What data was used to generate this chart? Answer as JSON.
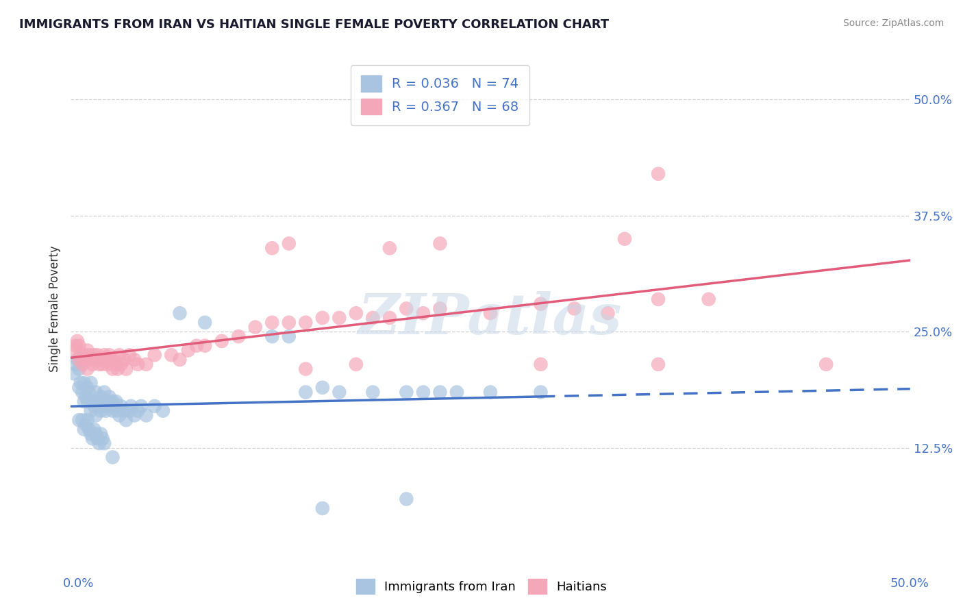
{
  "title": "IMMIGRANTS FROM IRAN VS HAITIAN SINGLE FEMALE POVERTY CORRELATION CHART",
  "source": "Source: ZipAtlas.com",
  "ylabel": "Single Female Poverty",
  "xlim": [
    0.0,
    0.5
  ],
  "ylim": [
    0.0,
    0.55
  ],
  "xtick_labels_edge": [
    "0.0%",
    "50.0%"
  ],
  "xtick_vals_edge": [
    0.0,
    0.5
  ],
  "ytick_labels": [
    "12.5%",
    "25.0%",
    "37.5%",
    "50.0%"
  ],
  "ytick_vals": [
    0.125,
    0.25,
    0.375,
    0.5
  ],
  "ytick_grid_vals": [
    0.125,
    0.25,
    0.375,
    0.5
  ],
  "iran_color": "#a8c4e0",
  "haitian_color": "#f4a7b9",
  "iran_line_color": "#4472c4",
  "haitian_line_color": "#e05c7a",
  "watermark": "ZIPatlas",
  "iran_scatter": [
    [
      0.002,
      0.205
    ],
    [
      0.003,
      0.215
    ],
    [
      0.004,
      0.22
    ],
    [
      0.005,
      0.21
    ],
    [
      0.005,
      0.19
    ],
    [
      0.006,
      0.195
    ],
    [
      0.007,
      0.185
    ],
    [
      0.008,
      0.195
    ],
    [
      0.008,
      0.175
    ],
    [
      0.009,
      0.18
    ],
    [
      0.01,
      0.19
    ],
    [
      0.01,
      0.175
    ],
    [
      0.011,
      0.185
    ],
    [
      0.012,
      0.195
    ],
    [
      0.012,
      0.165
    ],
    [
      0.013,
      0.175
    ],
    [
      0.014,
      0.17
    ],
    [
      0.015,
      0.185
    ],
    [
      0.015,
      0.16
    ],
    [
      0.016,
      0.175
    ],
    [
      0.017,
      0.17
    ],
    [
      0.018,
      0.18
    ],
    [
      0.018,
      0.165
    ],
    [
      0.019,
      0.175
    ],
    [
      0.02,
      0.185
    ],
    [
      0.02,
      0.17
    ],
    [
      0.021,
      0.165
    ],
    [
      0.022,
      0.175
    ],
    [
      0.023,
      0.18
    ],
    [
      0.024,
      0.17
    ],
    [
      0.025,
      0.175
    ],
    [
      0.025,
      0.165
    ],
    [
      0.026,
      0.17
    ],
    [
      0.027,
      0.175
    ],
    [
      0.028,
      0.165
    ],
    [
      0.029,
      0.16
    ],
    [
      0.03,
      0.17
    ],
    [
      0.032,
      0.165
    ],
    [
      0.033,
      0.155
    ],
    [
      0.035,
      0.165
    ],
    [
      0.036,
      0.17
    ],
    [
      0.038,
      0.16
    ],
    [
      0.04,
      0.165
    ],
    [
      0.042,
      0.17
    ],
    [
      0.045,
      0.16
    ],
    [
      0.05,
      0.17
    ],
    [
      0.055,
      0.165
    ],
    [
      0.065,
      0.27
    ],
    [
      0.08,
      0.26
    ],
    [
      0.12,
      0.245
    ],
    [
      0.13,
      0.245
    ],
    [
      0.14,
      0.185
    ],
    [
      0.15,
      0.19
    ],
    [
      0.16,
      0.185
    ],
    [
      0.18,
      0.185
    ],
    [
      0.2,
      0.185
    ],
    [
      0.21,
      0.185
    ],
    [
      0.22,
      0.185
    ],
    [
      0.23,
      0.185
    ],
    [
      0.25,
      0.185
    ],
    [
      0.28,
      0.185
    ],
    [
      0.005,
      0.155
    ],
    [
      0.007,
      0.155
    ],
    [
      0.008,
      0.145
    ],
    [
      0.009,
      0.15
    ],
    [
      0.01,
      0.155
    ],
    [
      0.011,
      0.145
    ],
    [
      0.012,
      0.14
    ],
    [
      0.013,
      0.135
    ],
    [
      0.014,
      0.145
    ],
    [
      0.015,
      0.14
    ],
    [
      0.016,
      0.135
    ],
    [
      0.017,
      0.13
    ],
    [
      0.018,
      0.14
    ],
    [
      0.019,
      0.135
    ],
    [
      0.02,
      0.13
    ],
    [
      0.025,
      0.115
    ],
    [
      0.15,
      0.06
    ],
    [
      0.2,
      0.07
    ]
  ],
  "haitian_scatter": [
    [
      0.002,
      0.23
    ],
    [
      0.003,
      0.235
    ],
    [
      0.004,
      0.24
    ],
    [
      0.005,
      0.235
    ],
    [
      0.005,
      0.22
    ],
    [
      0.006,
      0.225
    ],
    [
      0.007,
      0.215
    ],
    [
      0.008,
      0.225
    ],
    [
      0.009,
      0.22
    ],
    [
      0.01,
      0.23
    ],
    [
      0.01,
      0.21
    ],
    [
      0.011,
      0.225
    ],
    [
      0.012,
      0.22
    ],
    [
      0.013,
      0.215
    ],
    [
      0.014,
      0.225
    ],
    [
      0.015,
      0.22
    ],
    [
      0.016,
      0.225
    ],
    [
      0.017,
      0.215
    ],
    [
      0.018,
      0.22
    ],
    [
      0.019,
      0.215
    ],
    [
      0.02,
      0.225
    ],
    [
      0.021,
      0.22
    ],
    [
      0.022,
      0.215
    ],
    [
      0.023,
      0.225
    ],
    [
      0.024,
      0.22
    ],
    [
      0.025,
      0.21
    ],
    [
      0.026,
      0.22
    ],
    [
      0.027,
      0.215
    ],
    [
      0.028,
      0.21
    ],
    [
      0.029,
      0.225
    ],
    [
      0.03,
      0.215
    ],
    [
      0.032,
      0.22
    ],
    [
      0.033,
      0.21
    ],
    [
      0.035,
      0.225
    ],
    [
      0.038,
      0.22
    ],
    [
      0.04,
      0.215
    ],
    [
      0.045,
      0.215
    ],
    [
      0.05,
      0.225
    ],
    [
      0.06,
      0.225
    ],
    [
      0.065,
      0.22
    ],
    [
      0.07,
      0.23
    ],
    [
      0.075,
      0.235
    ],
    [
      0.08,
      0.235
    ],
    [
      0.09,
      0.24
    ],
    [
      0.1,
      0.245
    ],
    [
      0.11,
      0.255
    ],
    [
      0.12,
      0.26
    ],
    [
      0.13,
      0.26
    ],
    [
      0.14,
      0.26
    ],
    [
      0.15,
      0.265
    ],
    [
      0.16,
      0.265
    ],
    [
      0.17,
      0.27
    ],
    [
      0.18,
      0.265
    ],
    [
      0.19,
      0.265
    ],
    [
      0.2,
      0.275
    ],
    [
      0.21,
      0.27
    ],
    [
      0.22,
      0.275
    ],
    [
      0.25,
      0.27
    ],
    [
      0.28,
      0.28
    ],
    [
      0.3,
      0.275
    ],
    [
      0.32,
      0.27
    ],
    [
      0.35,
      0.285
    ],
    [
      0.38,
      0.285
    ],
    [
      0.12,
      0.34
    ],
    [
      0.13,
      0.345
    ],
    [
      0.19,
      0.34
    ],
    [
      0.22,
      0.345
    ],
    [
      0.33,
      0.35
    ],
    [
      0.14,
      0.21
    ],
    [
      0.17,
      0.215
    ],
    [
      0.28,
      0.215
    ],
    [
      0.35,
      0.215
    ],
    [
      0.45,
      0.215
    ],
    [
      0.35,
      0.42
    ]
  ],
  "background_color": "#ffffff",
  "grid_color": "#d0d0d0"
}
